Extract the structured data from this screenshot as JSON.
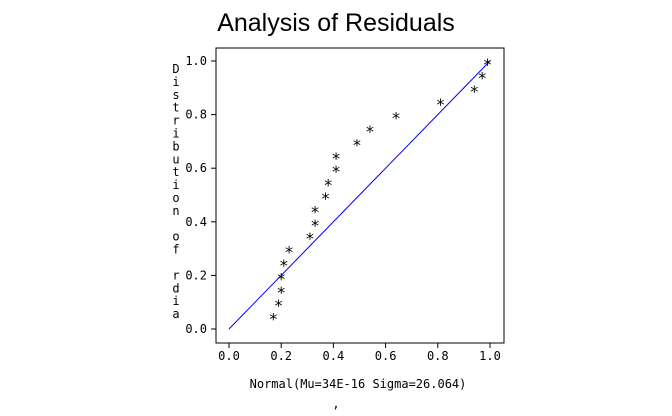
{
  "chart_data": {
    "type": "scatter",
    "title": "Analysis of Residuals",
    "xlabel": "Normal(Mu=34E-16 Sigma=26.064)",
    "ylabel": "Distribution of rdia",
    "footer": ",",
    "xlim": [
      0.0,
      1.0
    ],
    "ylim": [
      0.0,
      1.0
    ],
    "x_ticks": [
      "0.0",
      "0.2",
      "0.4",
      "0.6",
      "0.8",
      "1.0"
    ],
    "y_ticks": [
      "0.0",
      "0.2",
      "0.4",
      "0.6",
      "0.8",
      "1.0"
    ],
    "marker": "*",
    "grid": false,
    "colors": {
      "reference_line": "#0000ff",
      "points": "#000000",
      "frame": "#000000"
    },
    "reference_line": {
      "x": [
        0.0,
        1.0
      ],
      "y": [
        0.0,
        1.0
      ]
    },
    "series": [
      {
        "x": [
          0.17,
          0.19,
          0.2,
          0.2,
          0.21,
          0.23,
          0.31,
          0.33,
          0.33,
          0.37,
          0.38,
          0.41,
          0.41,
          0.49,
          0.54,
          0.64,
          0.81,
          0.94,
          0.97,
          0.99
        ],
        "y": [
          0.05,
          0.1,
          0.15,
          0.2,
          0.25,
          0.3,
          0.35,
          0.4,
          0.45,
          0.5,
          0.55,
          0.6,
          0.65,
          0.7,
          0.75,
          0.8,
          0.85,
          0.9,
          0.95,
          1.0
        ]
      }
    ]
  }
}
